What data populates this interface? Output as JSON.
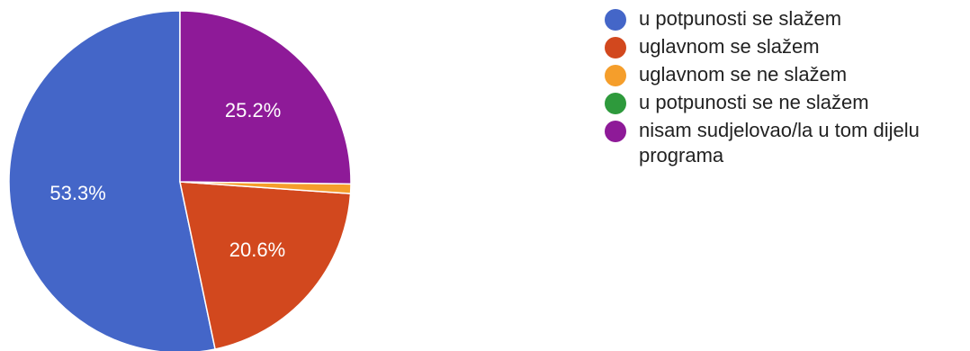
{
  "chart_data": {
    "type": "pie",
    "title": "",
    "categories": [
      "u potpunosti se slažem",
      "uglavnom se slažem",
      "uglavnom se ne slažem",
      "u potpunosti se ne slažem",
      "nisam sudjelovao/la u tom dijelu programa"
    ],
    "values": [
      53.3,
      20.6,
      0.9,
      0.0,
      25.2
    ],
    "data_labels": [
      "53.3%",
      "20.6%",
      "",
      "",
      "25.2%"
    ],
    "colors": [
      "#4466c8",
      "#d2481e",
      "#f59e2b",
      "#2e9a3c",
      "#8e1a98"
    ],
    "legend_placement": "right"
  },
  "legend": {
    "items": [
      {
        "label": "u potpunosti se slažem",
        "color": "#4466c8"
      },
      {
        "label": "uglavnom se slažem",
        "color": "#d2481e"
      },
      {
        "label": "uglavnom se ne slažem",
        "color": "#f59e2b"
      },
      {
        "label": "u potpunosti se ne slažem",
        "color": "#2e9a3c"
      },
      {
        "label": "nisam sudjelovao/la u tom dijelu programa",
        "color": "#8e1a98"
      }
    ]
  }
}
